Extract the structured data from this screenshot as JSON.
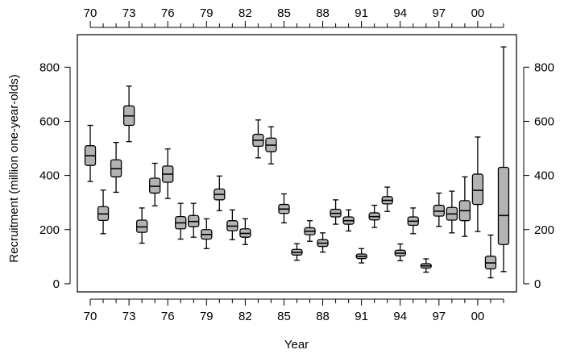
{
  "chart_data": {
    "type": "boxplot",
    "xlabel": "Year",
    "ylabel": "Recruitment (million one-year-olds)",
    "xlim": [
      1969,
      2003
    ],
    "ylim": [
      -30,
      920
    ],
    "x_ticks": [
      1970,
      1973,
      1976,
      1979,
      1982,
      1985,
      1988,
      1991,
      1994,
      1997,
      2000
    ],
    "x_tick_labels": [
      "70",
      "73",
      "76",
      "79",
      "82",
      "85",
      "88",
      "91",
      "94",
      "97",
      "00"
    ],
    "x_minor_ticks": [
      1971,
      1972,
      1974,
      1975,
      1977,
      1978,
      1980,
      1981,
      1983,
      1984,
      1986,
      1987,
      1989,
      1990,
      1992,
      1993,
      1995,
      1996,
      1998,
      1999,
      2001,
      2002
    ],
    "y_ticks": [
      0,
      200,
      400,
      600,
      800
    ],
    "y_tick_labels": [
      "0",
      "200",
      "400",
      "600",
      "800"
    ],
    "box_color": "#b3b3b3",
    "boxes": [
      {
        "x": 1970,
        "min": 378,
        "q1": 437,
        "median": 473,
        "q3": 510,
        "max": 585
      },
      {
        "x": 1971,
        "min": 185,
        "q1": 234,
        "median": 258,
        "q3": 285,
        "max": 346
      },
      {
        "x": 1972,
        "min": 338,
        "q1": 395,
        "median": 425,
        "q3": 458,
        "max": 522
      },
      {
        "x": 1973,
        "min": 525,
        "q1": 585,
        "median": 620,
        "q3": 657,
        "max": 730
      },
      {
        "x": 1974,
        "min": 150,
        "q1": 190,
        "median": 210,
        "q3": 235,
        "max": 280
      },
      {
        "x": 1975,
        "min": 288,
        "q1": 335,
        "median": 360,
        "q3": 390,
        "max": 445
      },
      {
        "x": 1976,
        "min": 315,
        "q1": 375,
        "median": 405,
        "q3": 435,
        "max": 498
      },
      {
        "x": 1977,
        "min": 165,
        "q1": 203,
        "median": 225,
        "q3": 248,
        "max": 297
      },
      {
        "x": 1978,
        "min": 172,
        "q1": 211,
        "median": 230,
        "q3": 252,
        "max": 297
      },
      {
        "x": 1979,
        "min": 130,
        "q1": 165,
        "median": 182,
        "q3": 200,
        "max": 240
      },
      {
        "x": 1980,
        "min": 270,
        "q1": 310,
        "median": 330,
        "q3": 350,
        "max": 398
      },
      {
        "x": 1981,
        "min": 163,
        "q1": 196,
        "median": 213,
        "q3": 233,
        "max": 273
      },
      {
        "x": 1982,
        "min": 145,
        "q1": 172,
        "median": 186,
        "q3": 203,
        "max": 240
      },
      {
        "x": 1983,
        "min": 465,
        "q1": 508,
        "median": 530,
        "q3": 552,
        "max": 605
      },
      {
        "x": 1984,
        "min": 443,
        "q1": 488,
        "median": 512,
        "q3": 538,
        "max": 580
      },
      {
        "x": 1985,
        "min": 225,
        "q1": 260,
        "median": 276,
        "q3": 293,
        "max": 332
      },
      {
        "x": 1986,
        "min": 87,
        "q1": 106,
        "median": 116,
        "q3": 127,
        "max": 148
      },
      {
        "x": 1987,
        "min": 157,
        "q1": 181,
        "median": 194,
        "q3": 207,
        "max": 233
      },
      {
        "x": 1988,
        "min": 117,
        "q1": 138,
        "median": 150,
        "q3": 163,
        "max": 188
      },
      {
        "x": 1989,
        "min": 220,
        "q1": 247,
        "median": 260,
        "q3": 275,
        "max": 310
      },
      {
        "x": 1990,
        "min": 195,
        "q1": 220,
        "median": 233,
        "q3": 247,
        "max": 273
      },
      {
        "x": 1991,
        "min": 77,
        "q1": 93,
        "median": 101,
        "q3": 110,
        "max": 130
      },
      {
        "x": 1992,
        "min": 208,
        "q1": 236,
        "median": 248,
        "q3": 262,
        "max": 290
      },
      {
        "x": 1993,
        "min": 267,
        "q1": 295,
        "median": 308,
        "q3": 322,
        "max": 357
      },
      {
        "x": 1994,
        "min": 85,
        "q1": 103,
        "median": 113,
        "q3": 124,
        "max": 147
      },
      {
        "x": 1995,
        "min": 185,
        "q1": 216,
        "median": 231,
        "q3": 247,
        "max": 280
      },
      {
        "x": 1996,
        "min": 43,
        "q1": 58,
        "median": 66,
        "q3": 74,
        "max": 92
      },
      {
        "x": 1997,
        "min": 212,
        "q1": 250,
        "median": 268,
        "q3": 290,
        "max": 335
      },
      {
        "x": 1998,
        "min": 188,
        "q1": 235,
        "median": 258,
        "q3": 282,
        "max": 342
      },
      {
        "x": 1999,
        "min": 175,
        "q1": 233,
        "median": 270,
        "q3": 307,
        "max": 395
      },
      {
        "x": 2000,
        "min": 193,
        "q1": 293,
        "median": 345,
        "q3": 405,
        "max": 542
      },
      {
        "x": 2001,
        "min": 22,
        "q1": 55,
        "median": 77,
        "q3": 102,
        "max": 180
      },
      {
        "x": 2002,
        "min": 45,
        "q1": 145,
        "median": 252,
        "q3": 430,
        "max": 875
      }
    ]
  }
}
